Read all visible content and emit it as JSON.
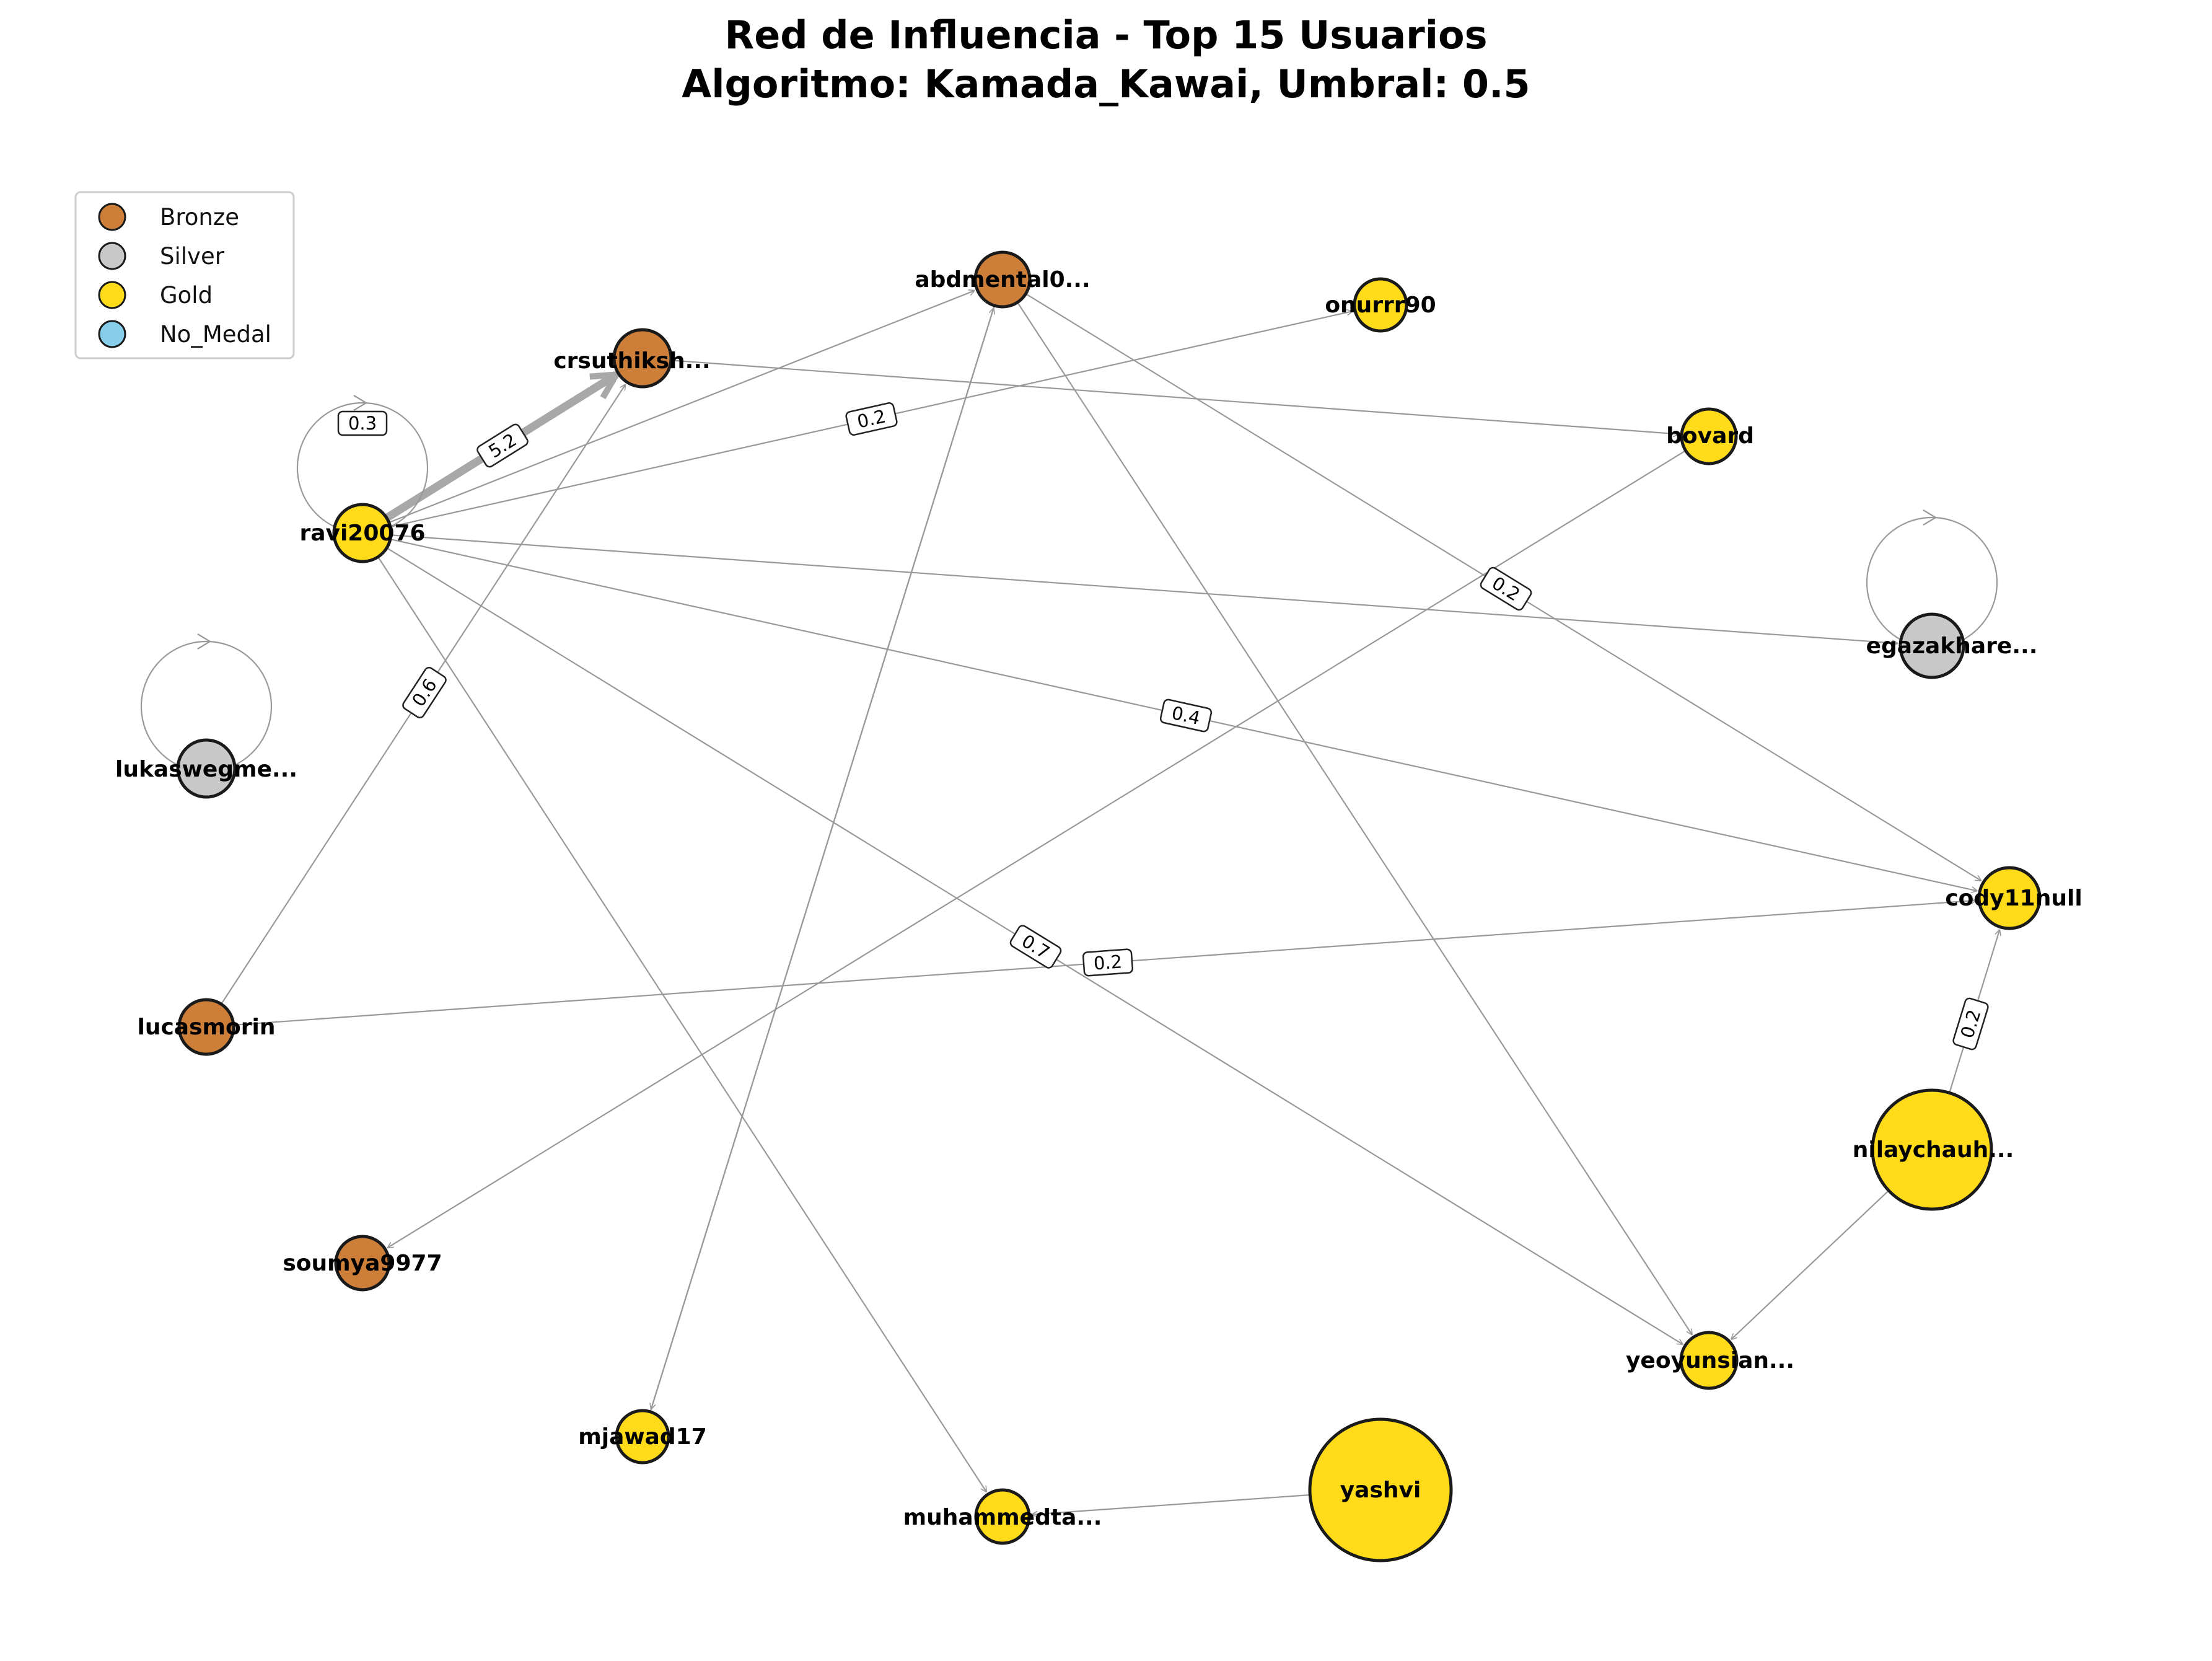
{
  "title": {
    "line1": "Red de Influencia - Top 15 Usuarios",
    "line2": "Algoritmo: Kamada_Kawai, Umbral: 0.5"
  },
  "colors": {
    "Bronze": "#cd7f3a",
    "Silver": "#c8c8c8",
    "Gold": "#ffdb1a",
    "No_Medal": "#87ceeb",
    "edge": "#999999",
    "node_border": "#1a1a1a"
  },
  "legend": {
    "items": [
      {
        "label": "Bronze",
        "tier": "Bronze"
      },
      {
        "label": "Silver",
        "tier": "Silver"
      },
      {
        "label": "Gold",
        "tier": "Gold"
      },
      {
        "label": "No_Medal",
        "tier": "No_Medal"
      }
    ]
  },
  "nodes": [
    {
      "id": "abdmental0",
      "label": "abdmental0...",
      "tier": "Bronze"
    },
    {
      "id": "onurrr90",
      "label": "onurrr90",
      "tier": "Gold"
    },
    {
      "id": "crsuthiksh",
      "label": "crsuthiksh...",
      "tier": "Bronze"
    },
    {
      "id": "bovard",
      "label": "bovard",
      "tier": "Gold"
    },
    {
      "id": "ravi20076",
      "label": "ravi20076",
      "tier": "Gold"
    },
    {
      "id": "egazakhare",
      "label": "egazakhare...",
      "tier": "Silver"
    },
    {
      "id": "lukaswegme",
      "label": "lukaswegme...",
      "tier": "Silver"
    },
    {
      "id": "cody11null",
      "label": "cody11null",
      "tier": "Gold"
    },
    {
      "id": "lucasmorin",
      "label": "lucasmorin",
      "tier": "Bronze"
    },
    {
      "id": "nilaychauh",
      "label": "nilaychauh...",
      "tier": "Gold"
    },
    {
      "id": "soumya9977",
      "label": "soumya9977",
      "tier": "Bronze"
    },
    {
      "id": "yeoyunsian",
      "label": "yeoyunsian...",
      "tier": "Gold"
    },
    {
      "id": "mjawad17",
      "label": "mjawad17",
      "tier": "Gold"
    },
    {
      "id": "muhammedta",
      "label": "muhammedta...",
      "tier": "Gold"
    },
    {
      "id": "yashvi",
      "label": "yashvi",
      "tier": "Gold"
    }
  ],
  "edges": [
    {
      "from": "ravi20076",
      "to": "crsuthiksh",
      "weight": "5.2"
    },
    {
      "from": "ravi20076",
      "to": "ravi20076",
      "weight": "0.3"
    },
    {
      "from": "ravi20076",
      "to": "onurrr90",
      "weight": "0.2"
    },
    {
      "from": "ravi20076",
      "to": "abdmental0"
    },
    {
      "from": "ravi20076",
      "to": "cody11null",
      "weight": "0.4"
    },
    {
      "from": "ravi20076",
      "to": "yeoyunsian",
      "weight": "0.7"
    },
    {
      "from": "ravi20076",
      "to": "egazakhare"
    },
    {
      "from": "ravi20076",
      "to": "muhammedta"
    },
    {
      "from": "lucasmorin",
      "to": "crsuthiksh",
      "weight": "0.6"
    },
    {
      "from": "lucasmorin",
      "to": "cody11null",
      "weight": "0.2"
    },
    {
      "from": "abdmental0",
      "to": "cody11null",
      "weight": "0.2"
    },
    {
      "from": "abdmental0",
      "to": "yeoyunsian"
    },
    {
      "from": "abdmental0",
      "to": "mjawad17"
    },
    {
      "from": "mjawad17",
      "to": "abdmental0"
    },
    {
      "from": "crsuthiksh",
      "to": "bovard"
    },
    {
      "from": "bovard",
      "to": "soumya9977"
    },
    {
      "from": "nilaychauh",
      "to": "cody11null",
      "weight": "0.2"
    },
    {
      "from": "nilaychauh",
      "to": "yeoyunsian"
    },
    {
      "from": "yashvi",
      "to": "muhammedta"
    },
    {
      "from": "egazakhare",
      "to": "egazakhare"
    },
    {
      "from": "lukaswegme",
      "to": "lukaswegme"
    }
  ]
}
